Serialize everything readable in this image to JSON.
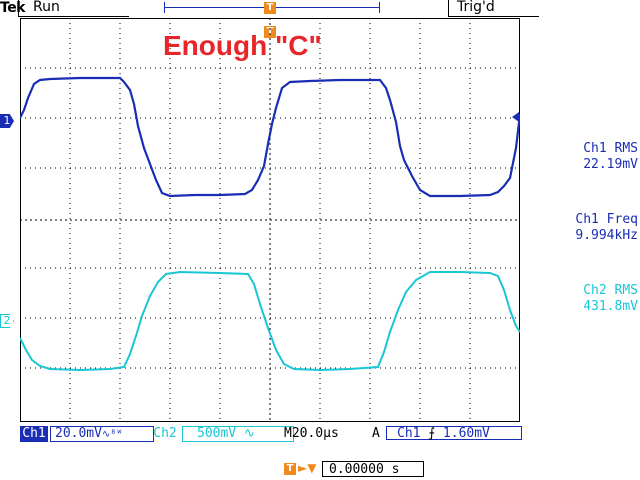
{
  "header": {
    "brand": "Tek",
    "state": "Run",
    "trigger_status": "Trig'd",
    "trigger_marker": "T"
  },
  "annotation": {
    "text": "Enough \"C\""
  },
  "channels": {
    "ch1_marker": "1",
    "ch2_marker": "2"
  },
  "measurements": [
    {
      "label": "Ch1 RMS",
      "value": "22.19mV"
    },
    {
      "label": "Ch1 Freq",
      "value": "9.994kHz"
    },
    {
      "label": "Ch2 RMS",
      "value": "431.8mV"
    }
  ],
  "status": {
    "ch1_badge": "Ch1",
    "ch1_scale": "20.0mV",
    "ch1_coupling": "∿ᴮᵂ",
    "ch2_badge": "Ch2",
    "ch2_scale": "500mV",
    "ch2_coupling": "∿",
    "timebase_prefix": "M",
    "timebase": "20.0µs",
    "trigger_mode": "A",
    "trigger_source": "Ch1",
    "trigger_slope": "⨍",
    "trigger_level": "1.60mV"
  },
  "position": {
    "icon": "T",
    "value": "0.00000 s"
  },
  "colors": {
    "ch1": "#1a2db5",
    "ch2": "#19c6d4",
    "trigger": "#f08a1c",
    "annotation": "#e8252a"
  }
}
